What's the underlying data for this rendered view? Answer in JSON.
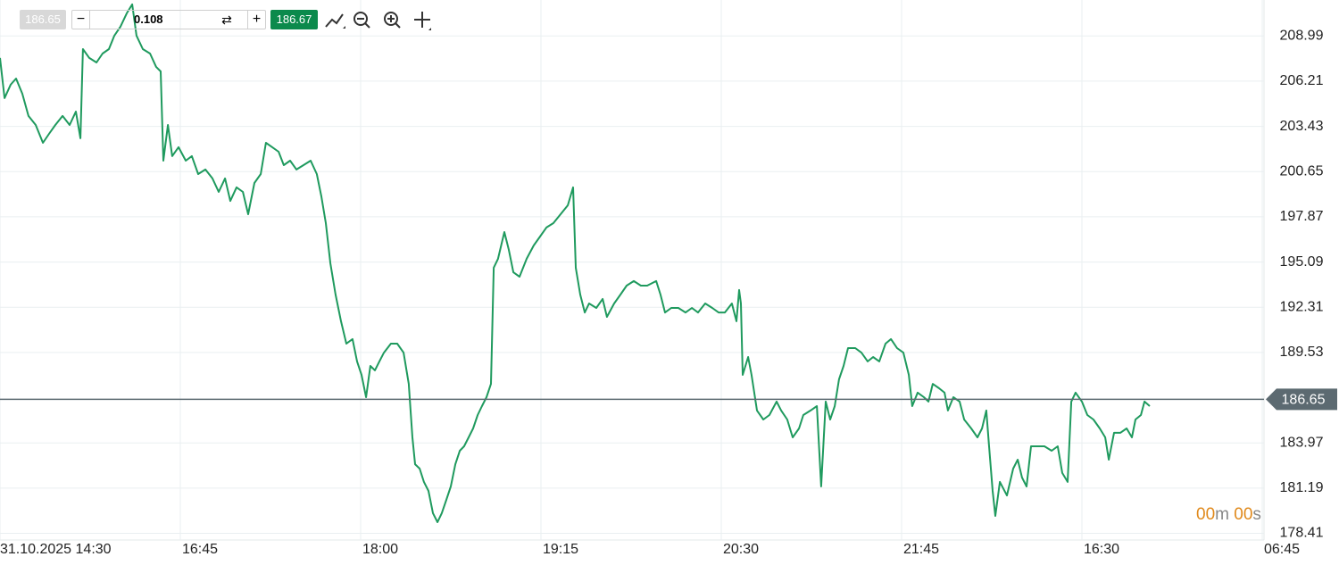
{
  "toolbar": {
    "bid": 186.65,
    "quantity": 0.108,
    "ask": 186.67
  },
  "timer": {
    "minutes": "00",
    "minutes_unit": "m",
    "seconds": "00",
    "seconds_unit": "s"
  },
  "chart_data": {
    "type": "line",
    "color": "#1f9a5e",
    "grid": true,
    "current_price": 186.65,
    "current_price_color": "#5c6a71",
    "xlim": [
      0,
      7
    ],
    "ylim": [
      178.0,
      211.2
    ],
    "xticks": [
      {
        "value": 0,
        "label": "31.10.2025 14:30"
      },
      {
        "value": 1,
        "label": "16:45"
      },
      {
        "value": 2,
        "label": "18:00"
      },
      {
        "value": 3,
        "label": "19:15"
      },
      {
        "value": 4,
        "label": "20:30"
      },
      {
        "value": 5,
        "label": "21:45"
      },
      {
        "value": 6,
        "label": "16:30"
      },
      {
        "value": 7,
        "label": "06:45"
      }
    ],
    "yticks": [
      178.41,
      181.19,
      183.97,
      189.53,
      192.31,
      195.09,
      197.87,
      200.65,
      203.43,
      206.21,
      208.99
    ],
    "x": [
      0,
      0.025,
      0.059,
      0.089,
      0.124,
      0.158,
      0.198,
      0.238,
      0.272,
      0.307,
      0.347,
      0.386,
      0.421,
      0.446,
      0.46,
      0.495,
      0.535,
      0.569,
      0.604,
      0.634,
      0.668,
      0.703,
      0.733,
      0.757,
      0.792,
      0.832,
      0.866,
      0.891,
      0.906,
      0.931,
      0.955,
      0.99,
      1.03,
      1.064,
      1.099,
      1.139,
      1.178,
      1.213,
      1.248,
      1.277,
      1.312,
      1.347,
      1.376,
      1.411,
      1.446,
      1.475,
      1.51,
      1.545,
      1.574,
      1.609,
      1.644,
      1.683,
      1.723,
      1.757,
      1.782,
      1.807,
      1.832,
      1.861,
      1.891,
      1.921,
      1.955,
      1.98,
      2.005,
      2.03,
      2.054,
      2.079,
      2.104,
      2.129,
      2.168,
      2.203,
      2.238,
      2.267,
      2.287,
      2.302,
      2.327,
      2.351,
      2.376,
      2.401,
      2.426,
      2.45,
      2.475,
      2.5,
      2.525,
      2.55,
      2.574,
      2.599,
      2.624,
      2.649,
      2.673,
      2.698,
      2.723,
      2.738,
      2.762,
      2.797,
      2.822,
      2.847,
      2.881,
      2.921,
      2.96,
      2.995,
      3.03,
      3.069,
      3.109,
      3.149,
      3.178,
      3.193,
      3.218,
      3.243,
      3.267,
      3.307,
      3.342,
      3.366,
      3.406,
      3.441,
      3.475,
      3.515,
      3.554,
      3.589,
      3.639,
      3.663,
      3.688,
      3.723,
      3.762,
      3.802,
      3.837,
      3.871,
      3.911,
      3.95,
      3.985,
      4.02,
      4.059,
      4.084,
      4.099,
      4.109,
      4.119,
      4.149,
      4.168,
      4.198,
      4.233,
      4.267,
      4.307,
      4.332,
      4.366,
      4.396,
      4.431,
      4.455,
      4.495,
      4.53,
      4.554,
      4.579,
      4.604,
      4.629,
      4.653,
      4.678,
      4.703,
      4.743,
      4.777,
      4.812,
      4.842,
      4.876,
      4.911,
      4.941,
      4.975,
      5.01,
      5.04,
      5.059,
      5.089,
      5.124,
      5.149,
      5.173,
      5.208,
      5.238,
      5.257,
      5.287,
      5.322,
      5.347,
      5.386,
      5.421,
      5.446,
      5.47,
      5.485,
      5.505,
      5.52,
      5.545,
      5.584,
      5.619,
      5.644,
      5.668,
      5.693,
      5.718,
      5.752,
      5.792,
      5.832,
      5.866,
      5.891,
      5.921,
      5.941,
      5.965,
      6.0,
      6.03,
      6.064,
      6.099,
      6.129,
      6.149,
      6.178,
      6.213,
      6.248,
      6.277,
      6.297,
      6.327,
      6.347,
      6.376
    ],
    "values": [
      207.64,
      205.17,
      205.99,
      206.37,
      205.44,
      204.07,
      203.52,
      202.42,
      202.97,
      203.52,
      204.07,
      203.52,
      204.34,
      202.7,
      208.18,
      207.64,
      207.36,
      207.91,
      208.18,
      209.01,
      209.56,
      210.38,
      210.93,
      209.01,
      208.18,
      207.91,
      207.09,
      206.81,
      201.32,
      203.52,
      201.6,
      202.15,
      201.32,
      201.6,
      200.5,
      200.78,
      200.23,
      199.4,
      200.23,
      198.85,
      199.68,
      199.4,
      198.03,
      199.95,
      200.5,
      202.42,
      202.15,
      201.87,
      201.05,
      201.32,
      200.78,
      201.05,
      201.32,
      200.5,
      199.13,
      197.48,
      195.01,
      193.09,
      191.45,
      190.07,
      190.35,
      188.98,
      188.15,
      186.78,
      188.7,
      188.43,
      188.98,
      189.52,
      190.07,
      190.07,
      189.52,
      187.6,
      184.31,
      182.66,
      182.39,
      181.57,
      181.02,
      179.65,
      179.1,
      179.65,
      180.47,
      181.29,
      182.66,
      183.49,
      183.76,
      184.31,
      184.86,
      185.68,
      186.23,
      186.78,
      187.6,
      194.74,
      195.29,
      196.93,
      195.84,
      194.46,
      194.19,
      195.29,
      196.11,
      196.66,
      197.21,
      197.48,
      198.03,
      198.58,
      199.68,
      194.74,
      193.09,
      191.99,
      192.54,
      192.27,
      192.82,
      191.72,
      192.54,
      193.09,
      193.64,
      193.92,
      193.64,
      193.64,
      193.92,
      193.09,
      191.99,
      192.27,
      192.27,
      191.99,
      192.27,
      191.99,
      192.54,
      192.27,
      191.99,
      191.99,
      192.54,
      191.45,
      193.37,
      192.54,
      188.15,
      189.25,
      188.15,
      185.96,
      185.41,
      185.68,
      186.51,
      185.96,
      185.41,
      184.31,
      184.86,
      185.68,
      185.96,
      186.23,
      181.29,
      186.51,
      185.41,
      186.23,
      187.88,
      188.7,
      189.8,
      189.8,
      189.52,
      188.98,
      189.25,
      188.98,
      190.07,
      190.35,
      189.8,
      189.52,
      188.15,
      186.23,
      187.06,
      186.78,
      186.51,
      187.6,
      187.33,
      187.06,
      185.96,
      186.78,
      186.51,
      185.41,
      184.86,
      184.31,
      184.86,
      185.96,
      183.76,
      181.02,
      179.48,
      181.57,
      180.74,
      182.39,
      182.94,
      181.84,
      181.29,
      183.76,
      183.76,
      183.76,
      183.49,
      183.76,
      182.12,
      181.57,
      186.51,
      187.06,
      186.51,
      185.68,
      185.41,
      184.86,
      184.31,
      182.94,
      184.59,
      184.59,
      184.86,
      184.31,
      185.41,
      185.68,
      186.51,
      186.23
    ]
  }
}
